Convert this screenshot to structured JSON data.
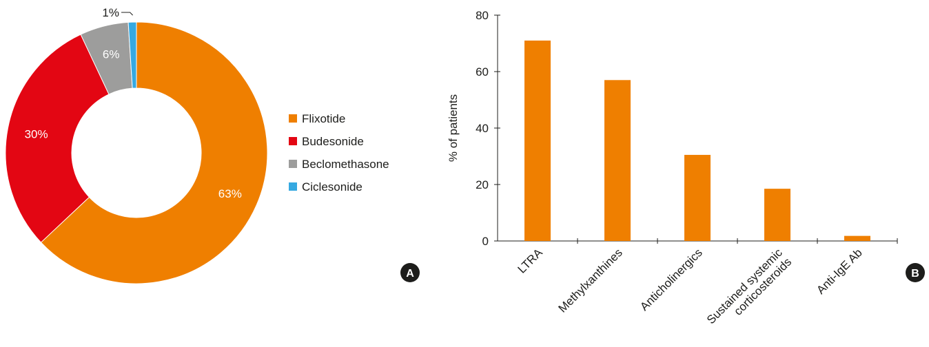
{
  "colors": {
    "flixotide": "#EF7F00",
    "budesonide": "#E30613",
    "beclomethasone": "#9D9D9C",
    "ciclesonide": "#36A9E1",
    "bar": "#EF7F00",
    "axis": "#1d1d1b",
    "badge": "#1d1d1b"
  },
  "panel_a": {
    "badge": "A"
  },
  "panel_b": {
    "badge": "B"
  },
  "chart_data": [
    {
      "type": "pie",
      "subtype": "donut",
      "categories": [
        "Flixotide",
        "Budesonide",
        "Beclomethasone",
        "Ciclesonide"
      ],
      "values": [
        63,
        30,
        6,
        1
      ],
      "value_labels": [
        "63%",
        "30%",
        "6%",
        "1%"
      ],
      "legend_position": "right"
    },
    {
      "type": "bar",
      "categories": [
        "LTRA",
        "Methylxanthines",
        "Anticholinergics",
        "Sustained systemic corticosteroids",
        "Anti-IgE Ab"
      ],
      "category_lines": [
        [
          "LTRA"
        ],
        [
          "Methylxanthines"
        ],
        [
          "Anticholinergics"
        ],
        [
          "Sustained systemic",
          "corticosteroids"
        ],
        [
          "Anti-IgE Ab"
        ]
      ],
      "values": [
        71,
        57,
        30.5,
        18.5,
        1.8
      ],
      "ylabel": "% of patients",
      "ylim": [
        0,
        80
      ],
      "yticks": [
        0,
        20,
        40,
        60,
        80
      ],
      "grid": false
    }
  ]
}
